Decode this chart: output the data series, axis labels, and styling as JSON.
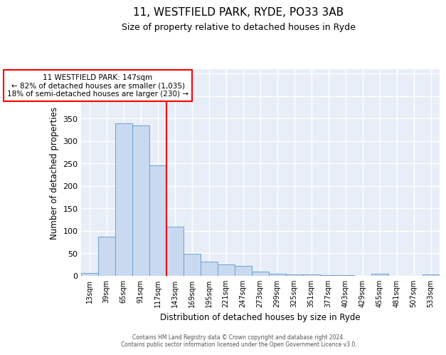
{
  "title": "11, WESTFIELD PARK, RYDE, PO33 3AB",
  "subtitle": "Size of property relative to detached houses in Ryde",
  "xlabel": "Distribution of detached houses by size in Ryde",
  "ylabel": "Number of detached properties",
  "bar_color": "#c9d9f0",
  "bar_edge_color": "#6aa0d4",
  "background_color": "#e8eef8",
  "grid_color": "#ffffff",
  "vline_color": "red",
  "annotation_text": "11 WESTFIELD PARK: 147sqm\n← 82% of detached houses are smaller (1,035)\n18% of semi-detached houses are larger (230) →",
  "categories": [
    "13sqm",
    "39sqm",
    "65sqm",
    "91sqm",
    "117sqm",
    "143sqm",
    "169sqm",
    "195sqm",
    "221sqm",
    "247sqm",
    "273sqm",
    "299sqm",
    "325sqm",
    "351sqm",
    "377sqm",
    "403sqm",
    "429sqm",
    "455sqm",
    "481sqm",
    "507sqm",
    "533sqm"
  ],
  "values": [
    6,
    88,
    340,
    334,
    246,
    110,
    49,
    31,
    25,
    22,
    10,
    5,
    3,
    3,
    2,
    1,
    0,
    4,
    0,
    0,
    3
  ],
  "ylim": [
    0,
    460
  ],
  "yticks": [
    0,
    50,
    100,
    150,
    200,
    250,
    300,
    350,
    400,
    450
  ],
  "footer_line1": "Contains HM Land Registry data © Crown copyright and database right 2024.",
  "footer_line2": "Contains public sector information licensed under the Open Government Licence v3.0."
}
